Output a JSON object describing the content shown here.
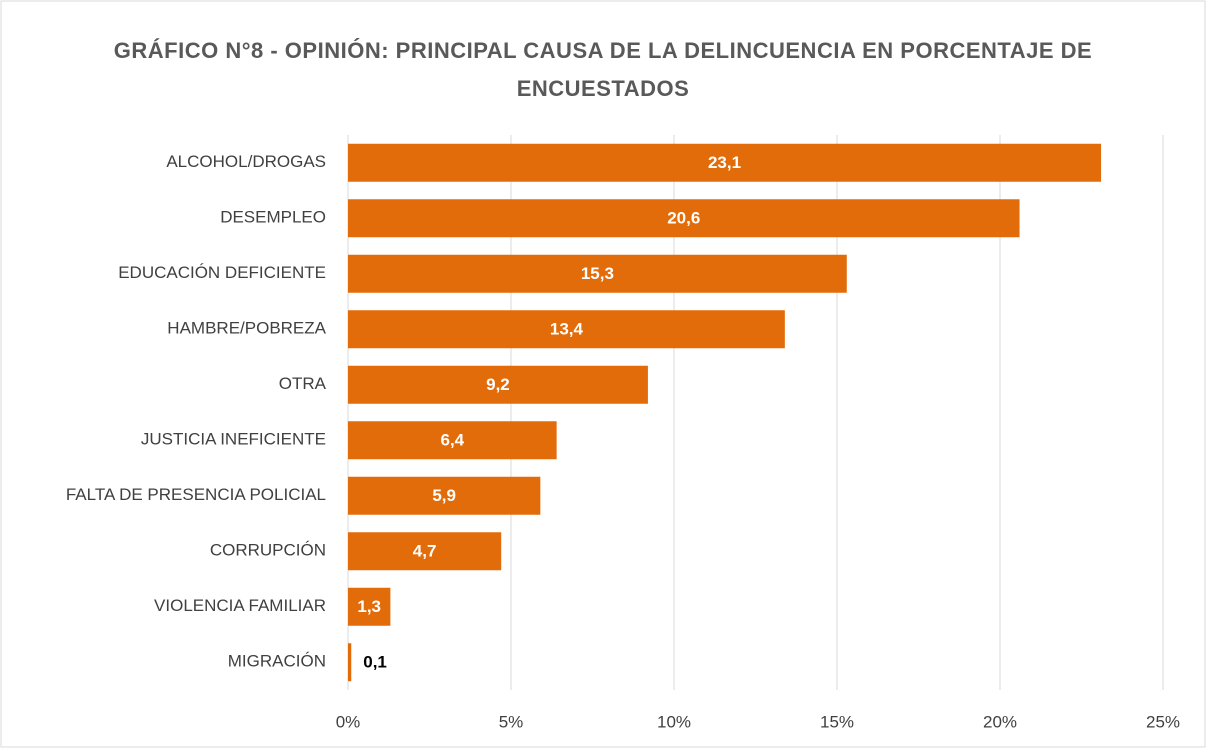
{
  "chart_data": {
    "type": "hbar",
    "title": "GRÁFICO N°8 - OPINIÓN: PRINCIPAL CAUSA DE LA DELINCUENCIA EN PORCENTAJE DE ENCUESTADOS",
    "categories": [
      "ALCOHOL/DROGAS",
      "DESEMPLEO",
      "EDUCACIÓN DEFICIENTE",
      "HAMBRE/POBREZA",
      "OTRA",
      "JUSTICIA INEFICIENTE",
      "FALTA DE PRESENCIA POLICIAL",
      "CORRUPCIÓN",
      "VIOLENCIA FAMILIAR",
      "MIGRACIÓN"
    ],
    "values": [
      23.1,
      20.6,
      15.3,
      13.4,
      9.2,
      6.4,
      5.9,
      4.7,
      1.3,
      0.1
    ],
    "value_labels": [
      "23,1",
      "20,6",
      "15,3",
      "13,4",
      "9,2",
      "6,4",
      "5,9",
      "4,7",
      "1,3",
      "0,1"
    ],
    "color": "#e36c0a",
    "xlim": [
      0,
      25
    ],
    "xticks": [
      {
        "value": 0,
        "label": "0%"
      },
      {
        "value": 5,
        "label": "5%"
      },
      {
        "value": 10,
        "label": "10%"
      },
      {
        "value": 15,
        "label": "15%"
      },
      {
        "value": 20,
        "label": "20%"
      },
      {
        "value": 25,
        "label": "25%"
      }
    ],
    "grid": true
  }
}
